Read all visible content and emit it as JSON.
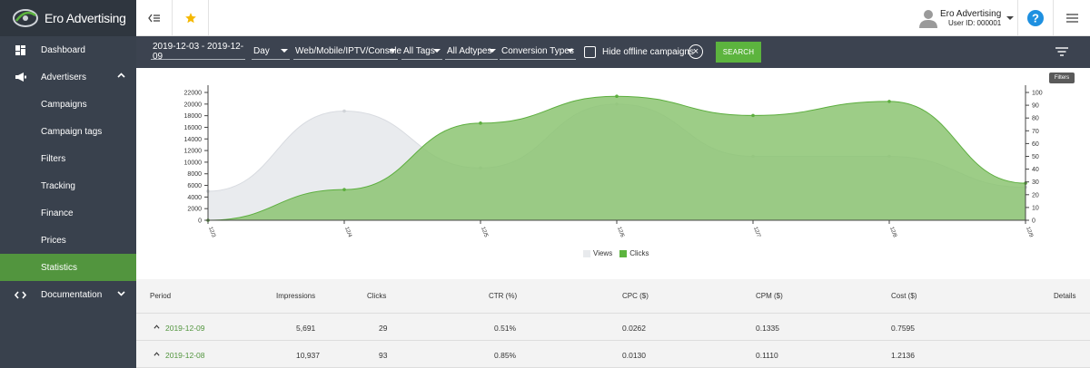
{
  "brand": {
    "name": "Ero Advertising"
  },
  "sidebar": {
    "items": [
      {
        "label": "Dashboard",
        "icon": "dashboard-icon"
      },
      {
        "label": "Advertisers",
        "icon": "megaphone-icon"
      },
      {
        "label": "Campaigns"
      },
      {
        "label": "Campaign tags"
      },
      {
        "label": "Filters"
      },
      {
        "label": "Tracking"
      },
      {
        "label": "Finance"
      },
      {
        "label": "Prices"
      },
      {
        "label": "Statistics"
      },
      {
        "label": "Documentation",
        "icon": "code-icon"
      }
    ],
    "active": "Statistics"
  },
  "topbar": {
    "user_name": "Ero Advertising",
    "user_id": "User ID: 000001"
  },
  "filterbar": {
    "date_range": "2019-12-03 - 2019-12-09",
    "granularity": "Day",
    "platform": "Web/Mobile/IPTV/Console",
    "tags": "All Tags",
    "adtypes": "All Adtypes",
    "conversion": "Conversion Types",
    "hide_offline_label": "Hide offline campaigns",
    "search_label": "SEARCH",
    "filters_tooltip": "Filters"
  },
  "colors": {
    "sidebar_bg": "#39414d",
    "accent_green": "#5cb43e",
    "views_fill": "#e8eaed",
    "clicks_fill": "#8cc472"
  },
  "chart_data": {
    "type": "area",
    "x": [
      "12/3",
      "12/4",
      "12/5",
      "12/6",
      "12/7",
      "12/8",
      "12/9"
    ],
    "series": [
      {
        "name": "Views",
        "axis": "left",
        "values": [
          5000,
          18800,
          9000,
          20000,
          11000,
          11000,
          5691
        ]
      },
      {
        "name": "Clicks",
        "axis": "right",
        "values": [
          0,
          24,
          76,
          97,
          82,
          93,
          29
        ]
      }
    ],
    "y_left": {
      "ylim": [
        0,
        22000
      ],
      "ticks": [
        0,
        2000,
        4000,
        6000,
        8000,
        10000,
        12000,
        14000,
        16000,
        18000,
        20000,
        22000
      ]
    },
    "y_right": {
      "ylim": [
        0,
        100
      ],
      "ticks": [
        0,
        10,
        20,
        30,
        40,
        50,
        60,
        70,
        80,
        90,
        100
      ]
    },
    "legend": "bottom-center",
    "grid": false
  },
  "table": {
    "columns": [
      "Period",
      "Impressions",
      "Clicks",
      "CTR (%)",
      "CPC ($)",
      "CPM ($)",
      "Cost ($)",
      "Details"
    ],
    "rows": [
      {
        "period": "2019-12-09",
        "impressions": "5,691",
        "clicks": "29",
        "ctr": "0.51%",
        "cpc": "0.0262",
        "cpm": "0.1335",
        "cost": "0.7595"
      },
      {
        "period": "2019-12-08",
        "impressions": "10,937",
        "clicks": "93",
        "ctr": "0.85%",
        "cpc": "0.0130",
        "cpm": "0.1110",
        "cost": "1.2136"
      }
    ]
  }
}
